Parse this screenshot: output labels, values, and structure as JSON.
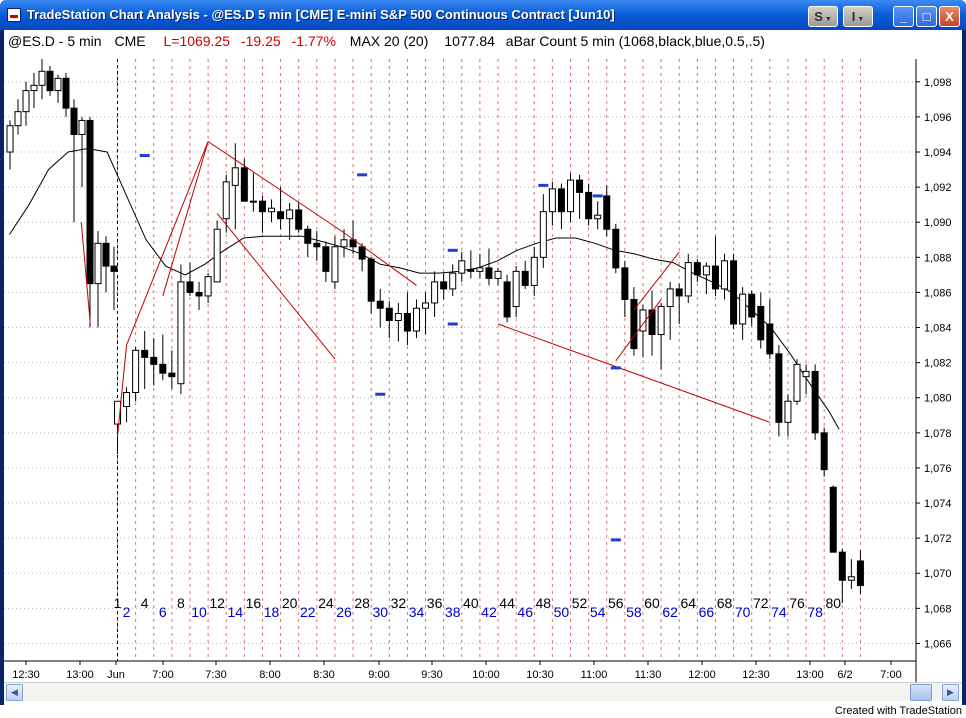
{
  "window": {
    "title": "TradeStation Chart Analysis - @ES.D 5 min [CME] E-mini S&P 500 Continuous Contract [Jun10]",
    "btn_s": "S",
    "btn_i": "I",
    "minimize": "_",
    "maximize": "□",
    "close": "X"
  },
  "status": {
    "symbol": "@ES.D - 5 min",
    "exchange": "CME",
    "last": "L=1069.25",
    "change": "-19.25",
    "pct": "-1.77%",
    "ma_label": "MAX 20 (20)",
    "ma_value": "1077.84",
    "study": "aBar Count 5 min (1068,black,blue,0.5,.5)"
  },
  "footer": {
    "text": "Created with TradeStation"
  },
  "chart_data": {
    "type": "candlestick",
    "yaxis_ticks": [
      "1,098",
      "1,096",
      "1,094",
      "1,092",
      "1,090",
      "1,088",
      "1,086",
      "1,084",
      "1,082",
      "1,080",
      "1,078",
      "1,076",
      "1,074",
      "1,072",
      "1,070",
      "1,068",
      "1,066"
    ],
    "ylim": [
      1065,
      1099.3
    ],
    "xaxis_ticks": [
      "12:30",
      "13:00",
      "Jun",
      "7:00",
      "7:30",
      "8:00",
      "8:30",
      "9:00",
      "9:30",
      "10:00",
      "10:30",
      "11:00",
      "11:30",
      "12:00",
      "12:30",
      "13:00",
      "6/2",
      "7:00"
    ],
    "bar_count_labels_black": [
      "1",
      "4",
      "8",
      "12",
      "16",
      "20",
      "24",
      "28",
      "32",
      "36",
      "40",
      "44",
      "48",
      "52",
      "56",
      "60",
      "64",
      "68",
      "72",
      "76",
      "80"
    ],
    "bar_count_labels_blue": [
      "2",
      "6",
      "10",
      "14",
      "18",
      "22",
      "26",
      "30",
      "34",
      "38",
      "42",
      "46",
      "50",
      "54",
      "58",
      "62",
      "66",
      "70",
      "74",
      "78"
    ],
    "prev_session_ohlc": [
      [
        1094,
        1095.8,
        1093,
        1095.5
      ],
      [
        1095.5,
        1097,
        1095,
        1096.3
      ],
      [
        1096.3,
        1098,
        1095.5,
        1097.5
      ],
      [
        1097.5,
        1098.5,
        1096.5,
        1097.8
      ],
      [
        1097.8,
        1099.3,
        1097,
        1098.6
      ],
      [
        1098.6,
        1098.9,
        1097.2,
        1097.5
      ],
      [
        1097.5,
        1098.4,
        1096.8,
        1098.2
      ],
      [
        1098.2,
        1098.5,
        1096,
        1096.5
      ],
      [
        1096.5,
        1097,
        1090,
        1095
      ],
      [
        1095,
        1096,
        1092,
        1095.8
      ],
      [
        1095.8,
        1096,
        1084,
        1086.5
      ],
      [
        1086.5,
        1089.5,
        1084,
        1088.8
      ],
      [
        1088.8,
        1089.2,
        1086,
        1087.5
      ],
      [
        1087.5,
        1088.6,
        1085,
        1087.2
      ]
    ],
    "ohlc": [
      [
        1078.5,
        1079.8,
        1076.8,
        1079.8
      ],
      [
        1079.5,
        1080.6,
        1078.6,
        1080.3
      ],
      [
        1080.3,
        1082.9,
        1079.8,
        1082.7
      ],
      [
        1082.7,
        1083.8,
        1080.5,
        1082.3
      ],
      [
        1082.3,
        1083.4,
        1080.7,
        1081.9
      ],
      [
        1081.9,
        1083.6,
        1081,
        1081.4
      ],
      [
        1081.4,
        1082.7,
        1080.5,
        1081.2
      ],
      [
        1080.8,
        1087.6,
        1080.2,
        1086.6
      ],
      [
        1086.6,
        1087.7,
        1085.8,
        1086
      ],
      [
        1086,
        1086.6,
        1085,
        1085.8
      ],
      [
        1085.8,
        1087.1,
        1085.4,
        1086.9
      ],
      [
        1086.6,
        1090.1,
        1086.6,
        1089.6
      ],
      [
        1090.2,
        1092.7,
        1089.4,
        1092.3
      ],
      [
        1092.1,
        1094.5,
        1089.6,
        1093.1
      ],
      [
        1093.1,
        1093.6,
        1091.2,
        1091.2
      ],
      [
        1091.2,
        1092.8,
        1090.6,
        1091.2
      ],
      [
        1091.2,
        1091.5,
        1089.4,
        1090.6
      ],
      [
        1090.6,
        1091.3,
        1090,
        1090.8
      ],
      [
        1090.6,
        1092,
        1089.6,
        1090.2
      ],
      [
        1090.2,
        1091.1,
        1089,
        1090.7
      ],
      [
        1090.7,
        1091.1,
        1089.4,
        1089.6
      ],
      [
        1089.6,
        1089.8,
        1088,
        1088.8
      ],
      [
        1088.8,
        1089.5,
        1087.8,
        1088.6
      ],
      [
        1088.6,
        1088.9,
        1086.6,
        1087.2
      ],
      [
        1086.6,
        1089.2,
        1086.2,
        1088.6
      ],
      [
        1088.6,
        1089.6,
        1088,
        1089
      ],
      [
        1089,
        1090.1,
        1088.2,
        1088.6
      ],
      [
        1088.6,
        1088.8,
        1087.2,
        1087.9
      ],
      [
        1087.9,
        1088,
        1084.8,
        1085.5
      ],
      [
        1085.5,
        1086.2,
        1084,
        1085.1
      ],
      [
        1085.1,
        1085.5,
        1083.4,
        1084.4
      ],
      [
        1084.4,
        1085.4,
        1083.2,
        1084.8
      ],
      [
        1084.8,
        1086,
        1083,
        1083.8
      ],
      [
        1083.8,
        1085.6,
        1083.4,
        1085.1
      ],
      [
        1085.1,
        1086,
        1083.6,
        1085.4
      ],
      [
        1085.4,
        1087.2,
        1084.6,
        1086.6
      ],
      [
        1086.6,
        1087.1,
        1085.6,
        1086.2
      ],
      [
        1086.2,
        1087.6,
        1085.8,
        1087.1
      ],
      [
        1087.1,
        1088.3,
        1086.6,
        1087.8
      ],
      [
        1087.3,
        1088.4,
        1086.8,
        1087.2
      ],
      [
        1087.2,
        1088.2,
        1086.8,
        1087.4
      ],
      [
        1087.4,
        1088.5,
        1086.4,
        1086.8
      ],
      [
        1086.8,
        1087.4,
        1086.4,
        1087.2
      ],
      [
        1086.6,
        1087,
        1084.3,
        1084.6
      ],
      [
        1085.2,
        1087.5,
        1084.6,
        1087.2
      ],
      [
        1087.2,
        1087.8,
        1086.2,
        1086.4
      ],
      [
        1086.4,
        1088.6,
        1085.8,
        1088
      ],
      [
        1088,
        1091.6,
        1087.4,
        1090.6
      ],
      [
        1090.6,
        1092.3,
        1089.8,
        1091.9
      ],
      [
        1091.9,
        1092.2,
        1089.6,
        1090.6
      ],
      [
        1090.6,
        1092.8,
        1090,
        1092.4
      ],
      [
        1092.4,
        1092.7,
        1090.2,
        1091.7
      ],
      [
        1091.7,
        1092.2,
        1089.8,
        1090.2
      ],
      [
        1090.2,
        1091.2,
        1089.6,
        1090.4
      ],
      [
        1091.5,
        1092.1,
        1089.2,
        1089.6
      ],
      [
        1089.6,
        1089.9,
        1087.1,
        1087.4
      ],
      [
        1087.4,
        1087.8,
        1084.6,
        1085.6
      ],
      [
        1085.6,
        1086.3,
        1082.4,
        1082.8
      ],
      [
        1083.8,
        1085.3,
        1082.3,
        1085
      ],
      [
        1085,
        1086.1,
        1082.4,
        1083.6
      ],
      [
        1083.6,
        1085.4,
        1081.6,
        1085.2
      ],
      [
        1085.2,
        1086.6,
        1083.3,
        1086.2
      ],
      [
        1086.2,
        1086.5,
        1084.2,
        1085.8
      ],
      [
        1085.8,
        1088.2,
        1085.4,
        1087.7
      ],
      [
        1087.7,
        1087.9,
        1086.6,
        1087
      ],
      [
        1087,
        1087.7,
        1085.9,
        1087.5
      ],
      [
        1087.5,
        1089.2,
        1085.8,
        1086.2
      ],
      [
        1086.2,
        1088.2,
        1085.6,
        1087.8
      ],
      [
        1087.8,
        1088.2,
        1083.9,
        1084.2
      ],
      [
        1084.2,
        1086.3,
        1083.3,
        1085.9
      ],
      [
        1085.9,
        1086.1,
        1084.1,
        1084.6
      ],
      [
        1085.2,
        1086,
        1082.8,
        1083.3
      ],
      [
        1084.2,
        1085.6,
        1082.2,
        1082.5
      ],
      [
        1082.5,
        1083,
        1077.8,
        1078.6
      ],
      [
        1078.6,
        1080.2,
        1077.8,
        1079.8
      ],
      [
        1079.8,
        1082.2,
        1079.6,
        1081.9
      ],
      [
        1081.2,
        1081.9,
        1080.2,
        1081.5
      ],
      [
        1081.5,
        1081.9,
        1077.6,
        1078
      ],
      [
        1078,
        1078.3,
        1075.5,
        1075.9
      ],
      [
        1074.9,
        1075,
        1071.2,
        1071.2
      ],
      [
        1071.2,
        1071.4,
        1068.3,
        1069.6
      ],
      [
        1069.6,
        1070.8,
        1069.1,
        1069.8
      ],
      [
        1070.7,
        1071.3,
        1068.8,
        1069.3
      ]
    ],
    "moving_average": [
      [
        0,
        1089.3
      ],
      [
        4,
        1091
      ],
      [
        8,
        1093
      ],
      [
        12,
        1094
      ],
      [
        16,
        1094.2
      ],
      [
        20,
        1094
      ],
      [
        24,
        1091.5
      ],
      [
        28,
        1089
      ],
      [
        32,
        1087.5
      ],
      [
        36,
        1087
      ],
      [
        40,
        1087.6
      ],
      [
        44,
        1088.4
      ],
      [
        48,
        1089.1
      ],
      [
        52,
        1089.2
      ],
      [
        56,
        1089.2
      ],
      [
        60,
        1089.2
      ],
      [
        64,
        1088.9
      ],
      [
        68,
        1088.6
      ],
      [
        72,
        1088.2
      ],
      [
        76,
        1087.6
      ],
      [
        80,
        1087.4
      ],
      [
        84,
        1087.1
      ],
      [
        88,
        1087.1
      ],
      [
        92,
        1087.2
      ],
      [
        96,
        1087.4
      ],
      [
        100,
        1087.8
      ],
      [
        104,
        1088.4
      ],
      [
        108,
        1088.8
      ],
      [
        112,
        1089.1
      ],
      [
        116,
        1089.1
      ],
      [
        120,
        1088.8
      ],
      [
        124,
        1088.4
      ],
      [
        128,
        1088.2
      ],
      [
        132,
        1087.9
      ],
      [
        136,
        1087.7
      ],
      [
        140,
        1087.1
      ],
      [
        144,
        1086.6
      ],
      [
        148,
        1086
      ],
      [
        152,
        1085
      ],
      [
        156,
        1084
      ],
      [
        160,
        1082.5
      ],
      [
        164,
        1080.8
      ],
      [
        168,
        1079.2
      ],
      [
        170,
        1078.2
      ]
    ],
    "red_trendlines": [
      [
        [
          -4,
          1090
        ],
        [
          -3,
          1084.2
        ]
      ],
      [
        [
          0,
          1077.8
        ],
        [
          1,
          1083
        ]
      ],
      [
        [
          1,
          1083
        ],
        [
          10,
          1094.6
        ]
      ],
      [
        [
          5,
          1085.8
        ],
        [
          10,
          1094.6
        ]
      ],
      [
        [
          10,
          1094.6
        ],
        [
          25,
          1089.4
        ]
      ],
      [
        [
          25,
          1089.4
        ],
        [
          33,
          1086.4
        ]
      ],
      [
        [
          11,
          1090.5
        ],
        [
          24,
          1082.2
        ]
      ],
      [
        [
          42,
          1084.2
        ],
        [
          72,
          1078.6
        ]
      ],
      [
        [
          55,
          1082.1
        ],
        [
          60,
          1085.6
        ]
      ],
      [
        [
          57,
          1085
        ],
        [
          62,
          1088.3
        ]
      ]
    ],
    "blue_markers": [
      [
        3,
        1093.8
      ],
      [
        27,
        1092.7
      ],
      [
        47,
        1092.1
      ],
      [
        55,
        1081.7
      ],
      [
        55,
        1071.9
      ],
      [
        29,
        1080.2
      ],
      [
        37,
        1088.4
      ],
      [
        37,
        1084.2
      ],
      [
        53,
        1091.5
      ]
    ]
  }
}
